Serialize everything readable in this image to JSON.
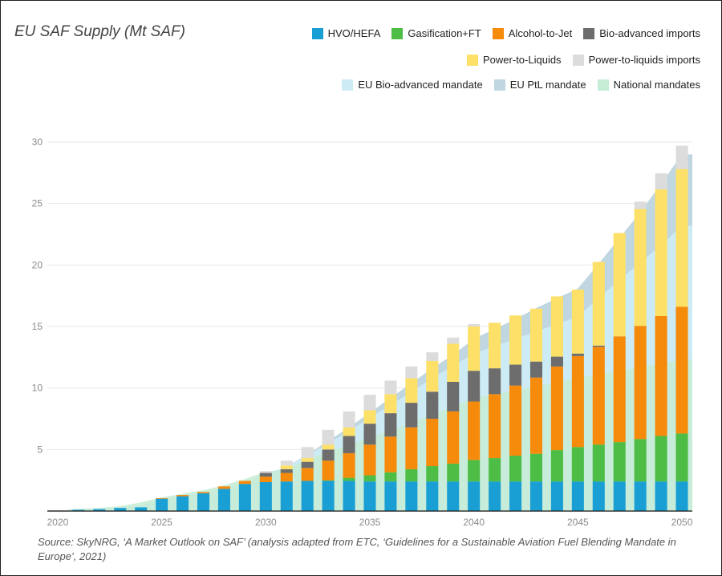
{
  "chart_data": {
    "type": "bar",
    "title": "EU SAF Supply (Mt SAF)",
    "stacked": true,
    "years": [
      2021,
      2022,
      2023,
      2024,
      2025,
      2026,
      2027,
      2028,
      2029,
      2030,
      2031,
      2032,
      2033,
      2034,
      2035,
      2036,
      2037,
      2038,
      2039,
      2040,
      2041,
      2042,
      2043,
      2044,
      2045,
      2046,
      2047,
      2048,
      2049,
      2050
    ],
    "ylim": [
      0,
      30
    ],
    "y_ticks": [
      0,
      5,
      10,
      15,
      20,
      25,
      30
    ],
    "y_tick_labels": [
      "",
      "5",
      "10",
      "15",
      "20",
      "25",
      "30"
    ],
    "x_ticks": [
      2020,
      2025,
      2030,
      2035,
      2040,
      2045,
      2050
    ],
    "x_tick_labels": [
      "2020",
      "2025",
      "2030",
      "2035",
      "2040",
      "2045",
      "2050"
    ],
    "grid": true,
    "legend_position": "top-right",
    "series": [
      {
        "name": "HVO/HEFA",
        "color": "#1a9fd4",
        "values": [
          0.1,
          0.15,
          0.25,
          0.3,
          1.0,
          1.2,
          1.45,
          1.8,
          2.2,
          2.35,
          2.4,
          2.45,
          2.45,
          2.45,
          2.4,
          2.4,
          2.4,
          2.4,
          2.4,
          2.4,
          2.4,
          2.4,
          2.4,
          2.4,
          2.4,
          2.4,
          2.4,
          2.4,
          2.4,
          2.4
        ]
      },
      {
        "name": "Gasification+FT",
        "color": "#4dbd45",
        "values": [
          0,
          0,
          0,
          0,
          0,
          0,
          0,
          0,
          0,
          0,
          0,
          0,
          0.05,
          0.25,
          0.5,
          0.75,
          1.0,
          1.25,
          1.45,
          1.75,
          1.9,
          2.1,
          2.25,
          2.55,
          2.8,
          3.0,
          3.2,
          3.45,
          3.7,
          3.9
        ]
      },
      {
        "name": "Alcohol-to-Jet",
        "color": "#f58a0b",
        "values": [
          0,
          0,
          0,
          0,
          0.05,
          0.1,
          0.1,
          0.2,
          0.25,
          0.45,
          0.7,
          1.05,
          1.6,
          2.0,
          2.5,
          2.9,
          3.4,
          3.85,
          4.25,
          4.75,
          5.2,
          5.7,
          6.2,
          6.8,
          7.4,
          7.95,
          8.6,
          9.2,
          9.75,
          10.3
        ]
      },
      {
        "name": "Bio-advanced imports",
        "color": "#6d6d6d",
        "values": [
          0,
          0,
          0,
          0,
          0,
          0,
          0,
          0,
          0,
          0.3,
          0.3,
          0.5,
          0.9,
          1.4,
          1.7,
          1.9,
          2.0,
          2.2,
          2.4,
          2.5,
          2.1,
          1.7,
          1.3,
          0.8,
          0.2,
          0.1,
          0,
          0,
          0,
          0
        ]
      },
      {
        "name": "Power-to-Liquids",
        "color": "#fde068",
        "values": [
          0,
          0,
          0,
          0,
          0,
          0,
          0,
          0,
          0,
          0,
          0.3,
          0.3,
          0.4,
          0.7,
          1.1,
          1.55,
          2.0,
          2.5,
          3.1,
          3.6,
          3.7,
          4.0,
          4.3,
          4.9,
          5.2,
          6.8,
          8.4,
          9.5,
          10.3,
          11.2
        ]
      },
      {
        "name": "Power-to-liquids imports",
        "color": "#dcdcdc",
        "values": [
          0,
          0,
          0,
          0,
          0,
          0,
          0,
          0,
          0,
          0.15,
          0.4,
          0.9,
          1.2,
          1.3,
          1.25,
          1.1,
          0.95,
          0.7,
          0.5,
          0.2,
          0,
          0,
          0,
          0,
          0,
          0,
          0,
          0.6,
          1.3,
          1.9
        ]
      }
    ],
    "mandate_areas": [
      {
        "name": "EU Bio-advanced mandate",
        "color": "#cdebf5",
        "values": [
          0.1,
          0.2,
          0.3,
          0.45,
          0.9,
          1.2,
          1.5,
          1.85,
          2.3,
          3.0,
          3.6,
          4.5,
          5.5,
          6.5,
          7.6,
          8.6,
          9.7,
          10.8,
          11.8,
          12.8,
          13.4,
          14.0,
          14.6,
          15.2,
          15.8,
          17.3,
          18.8,
          20.2,
          21.6,
          23.2
        ]
      },
      {
        "name": "EU PtL mandate",
        "color": "#c0d6e0",
        "values": [
          0.1,
          0.2,
          0.3,
          0.45,
          0.9,
          1.2,
          1.5,
          1.85,
          2.3,
          3.0,
          3.6,
          4.6,
          5.7,
          6.8,
          8.0,
          9.2,
          10.4,
          11.6,
          12.7,
          14.0,
          14.8,
          15.6,
          16.5,
          17.3,
          18.1,
          20.1,
          22.2,
          24.3,
          26.6,
          29.0
        ]
      },
      {
        "name": "National mandates",
        "color": "#c5ecd4",
        "values": [
          0.15,
          0.25,
          0.4,
          0.7,
          1.1,
          1.4,
          1.7,
          2.1,
          2.6,
          3.2,
          3.4,
          4.2,
          4.8,
          5.4,
          6.0,
          6.6,
          7.2,
          7.8,
          8.5,
          9.2,
          9.5,
          9.8,
          10.1,
          10.5,
          10.8,
          11.1,
          11.4,
          11.7,
          12.0,
          12.3
        ]
      }
    ]
  },
  "source_text": "Source: SkyNRG, ‘A Market Outlook on SAF’ (analysis adapted from ETC, ‘Guidelines for a Sustainable Aviation Fuel Blending Mandate in Europe’, 2021)"
}
